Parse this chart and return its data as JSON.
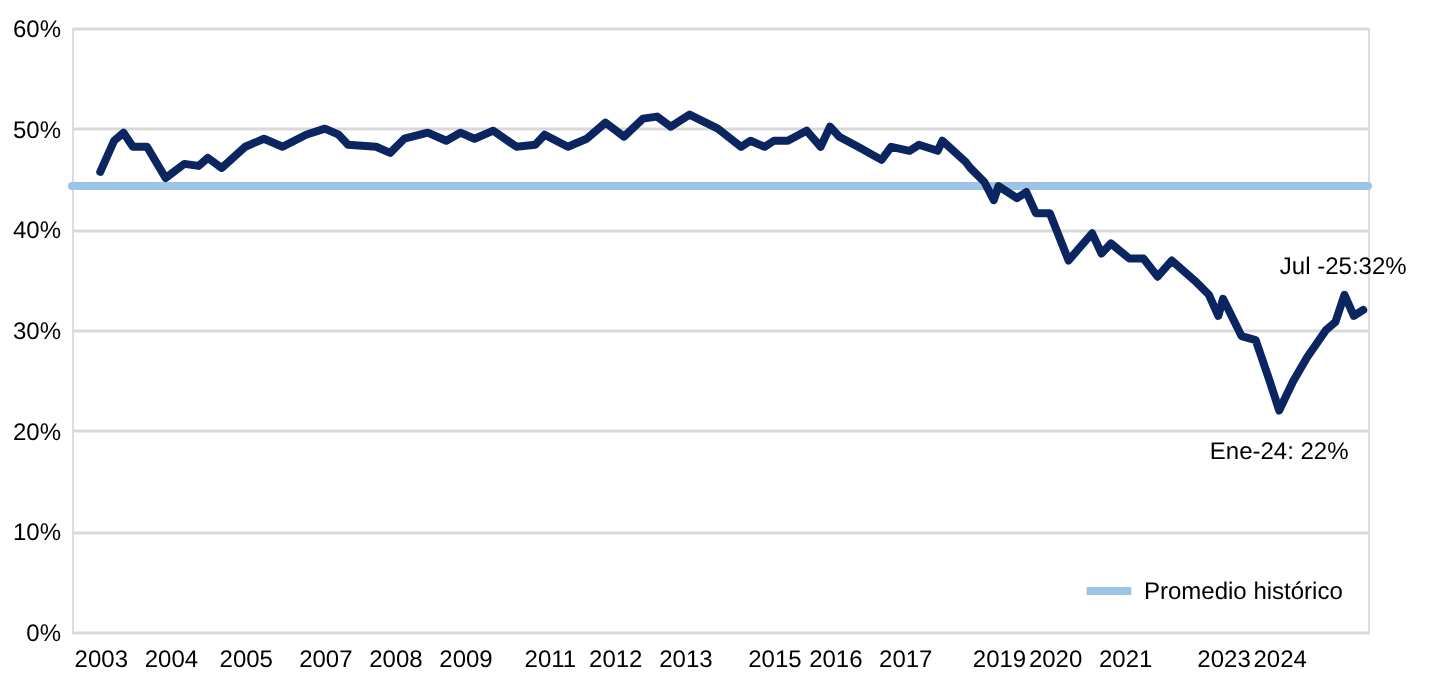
{
  "chart_data": {
    "type": "line",
    "x": [
      "2003-01",
      "2003-04",
      "2003-06",
      "2003-08",
      "2003-11",
      "2004-03",
      "2004-07",
      "2004-10",
      "2004-12",
      "2005-03",
      "2005-08",
      "2005-12",
      "2006-04",
      "2006-09",
      "2007-01",
      "2007-04",
      "2007-06",
      "2007-12",
      "2008-03",
      "2008-06",
      "2008-11",
      "2009-03",
      "2009-06",
      "2009-09",
      "2010-01",
      "2010-06",
      "2010-10",
      "2010-12",
      "2011-05",
      "2011-09",
      "2012-01",
      "2012-05",
      "2012-09",
      "2012-12",
      "2013-03",
      "2013-07",
      "2014-01",
      "2014-06",
      "2014-08",
      "2014-11",
      "2015-01",
      "2015-04",
      "2015-08",
      "2015-11",
      "2016-01",
      "2016-03",
      "2016-07",
      "2016-12",
      "2017-02",
      "2017-06",
      "2017-08",
      "2017-12",
      "2018-01",
      "2018-06",
      "2018-07",
      "2018-10",
      "2018-12",
      "2019-01",
      "2019-05",
      "2019-07",
      "2019-09",
      "2019-12",
      "2020-04",
      "2020-06",
      "2020-09",
      "2020-11",
      "2021-01",
      "2021-05",
      "2021-08",
      "2021-11",
      "2022-02",
      "2022-07",
      "2022-10",
      "2022-12",
      "2023-01",
      "2023-05",
      "2023-08",
      "2023-11",
      "2024-01",
      "2024-04",
      "2024-07",
      "2024-11",
      "2025-01",
      "2025-03",
      "2025-05",
      "2025-07"
    ],
    "series": [
      {
        "color": "#0b2561",
        "values": [
          45.7,
          48.8,
          49.6,
          48.2,
          48.2,
          45.1,
          46.5,
          46.3,
          47.1,
          46.1,
          48.2,
          49.0,
          48.2,
          49.4,
          50.0,
          49.4,
          48.4,
          48.2,
          47.6,
          49.0,
          49.6,
          48.8,
          49.6,
          49.0,
          49.8,
          48.2,
          48.4,
          49.4,
          48.2,
          49.0,
          50.6,
          49.2,
          51.0,
          51.2,
          50.2,
          51.4,
          50.0,
          48.2,
          48.8,
          48.2,
          48.8,
          48.8,
          49.8,
          48.2,
          50.2,
          49.2,
          48.2,
          46.9,
          48.2,
          47.8,
          48.4,
          47.8,
          48.8,
          46.7,
          46.1,
          44.7,
          42.9,
          44.3,
          43.1,
          43.7,
          41.6,
          41.6,
          36.9,
          38.0,
          39.6,
          37.6,
          38.6,
          37.1,
          37.1,
          35.3,
          36.9,
          34.9,
          33.5,
          31.4,
          33.1,
          29.4,
          29.0,
          24.9,
          22,
          24.9,
          27.3,
          30.0,
          30.8,
          33.5,
          31.4,
          32
        ]
      }
    ],
    "xlim": [
      "2002-07",
      "2025-08"
    ],
    "xticks": [
      {
        "value": "2003-01",
        "label": "2003"
      },
      {
        "value": "2004-04",
        "label": "2004"
      },
      {
        "value": "2005-08",
        "label": "2005"
      },
      {
        "value": "2007-01",
        "label": "2007"
      },
      {
        "value": "2008-04",
        "label": "2008"
      },
      {
        "value": "2009-07",
        "label": "2009"
      },
      {
        "value": "2011-01",
        "label": "2011"
      },
      {
        "value": "2012-03",
        "label": "2012"
      },
      {
        "value": "2013-06",
        "label": "2013"
      },
      {
        "value": "2015-01",
        "label": "2015"
      },
      {
        "value": "2016-02",
        "label": "2016"
      },
      {
        "value": "2017-05",
        "label": "2017"
      },
      {
        "value": "2019-01",
        "label": "2019"
      },
      {
        "value": "2020-01",
        "label": "2020"
      },
      {
        "value": "2021-04",
        "label": "2021"
      },
      {
        "value": "2023-01",
        "label": "2023"
      },
      {
        "value": "2024-01",
        "label": "2024"
      }
    ],
    "ylim": [
      0,
      60
    ],
    "yticks": [
      {
        "value": 0,
        "label": "0%"
      },
      {
        "value": 10,
        "label": "10%"
      },
      {
        "value": 20,
        "label": "20%"
      },
      {
        "value": 30,
        "label": "30%"
      },
      {
        "value": 40,
        "label": "40%"
      },
      {
        "value": 50,
        "label": "50%"
      },
      {
        "value": 60,
        "label": "60%"
      }
    ],
    "grid": "y",
    "ref_lines": [
      {
        "axis": "y",
        "value": 44.3,
        "label": "Promedio histórico",
        "color": "#9dc3e6"
      }
    ],
    "legend": "bottom right",
    "annotations": [
      {
        "text": "Jul -25:32%",
        "x": "2025-07",
        "y": 32
      },
      {
        "text": "Ene-24: 22%",
        "x": "2024-01",
        "y": 22
      }
    ]
  }
}
